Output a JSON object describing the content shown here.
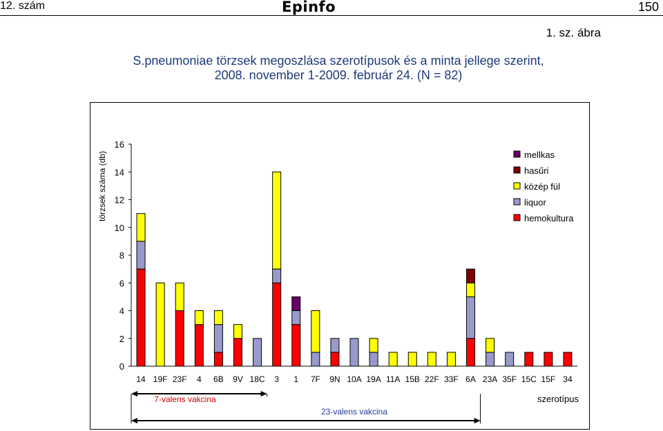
{
  "header": {
    "issue": "12. szám",
    "logo": "Epinfo",
    "page_number": "150"
  },
  "figure": {
    "label": "1. sz. ábra",
    "title_line1": "S.pneumoniae törzsek megoszlása szerotípusok és a minta jellege szerint,",
    "title_line2": "2008. november 1-2009. február 24. (N = 82)"
  },
  "chart_data": {
    "type": "bar",
    "stacked": true,
    "ylabel": "törzsek száma (db)",
    "xlabel": "szerotípus",
    "ylim": [
      0,
      16
    ],
    "yticks": [
      0,
      2,
      4,
      6,
      8,
      10,
      12,
      14,
      16
    ],
    "grid": false,
    "legend_position": "top-right",
    "categories": [
      "14",
      "19F",
      "23F",
      "4",
      "6B",
      "9V",
      "18C",
      "3",
      "1",
      "7F",
      "9N",
      "10A",
      "19A",
      "11A",
      "15B",
      "22F",
      "33F",
      "6A",
      "23A",
      "35F",
      "15C",
      "15F",
      "34"
    ],
    "series": [
      {
        "name": "hemokultura",
        "color": "#ff0000",
        "values": [
          7,
          0,
          4,
          3,
          1,
          2,
          0,
          6,
          3,
          0,
          1,
          0,
          0,
          0,
          0,
          0,
          0,
          2,
          0,
          0,
          1,
          1,
          1
        ]
      },
      {
        "name": "liquor",
        "color": "#9999cc",
        "values": [
          2,
          0,
          0,
          0,
          2,
          0,
          2,
          1,
          1,
          1,
          1,
          2,
          1,
          0,
          0,
          0,
          0,
          3,
          1,
          1,
          0,
          0,
          0
        ]
      },
      {
        "name": "közép fül",
        "color": "#ffff00",
        "values": [
          2,
          6,
          2,
          1,
          1,
          1,
          0,
          7,
          0,
          3,
          0,
          0,
          1,
          1,
          1,
          1,
          1,
          1,
          1,
          0,
          0,
          0,
          0
        ]
      },
      {
        "name": "hasűri",
        "color": "#800000",
        "values": [
          0,
          0,
          0,
          0,
          0,
          0,
          0,
          0,
          0,
          0,
          0,
          0,
          0,
          0,
          0,
          0,
          0,
          1,
          0,
          0,
          0,
          0,
          0
        ]
      },
      {
        "name": "mellkas",
        "color": "#660066",
        "values": [
          0,
          0,
          0,
          0,
          0,
          0,
          0,
          0,
          1,
          0,
          0,
          0,
          0,
          0,
          0,
          0,
          0,
          0,
          0,
          0,
          0,
          0,
          0
        ]
      }
    ],
    "legend_order": [
      "mellkas",
      "hasűri",
      "közép fül",
      "liquor",
      "hemokultura"
    ],
    "vaccine_groups": [
      {
        "label": "7-valens vakcina",
        "from": "14",
        "to": "18C",
        "color": "#cc0000"
      },
      {
        "label": "23-valens vakcina",
        "from": "14",
        "to": "6A",
        "color": "#1f3a9a"
      }
    ]
  }
}
